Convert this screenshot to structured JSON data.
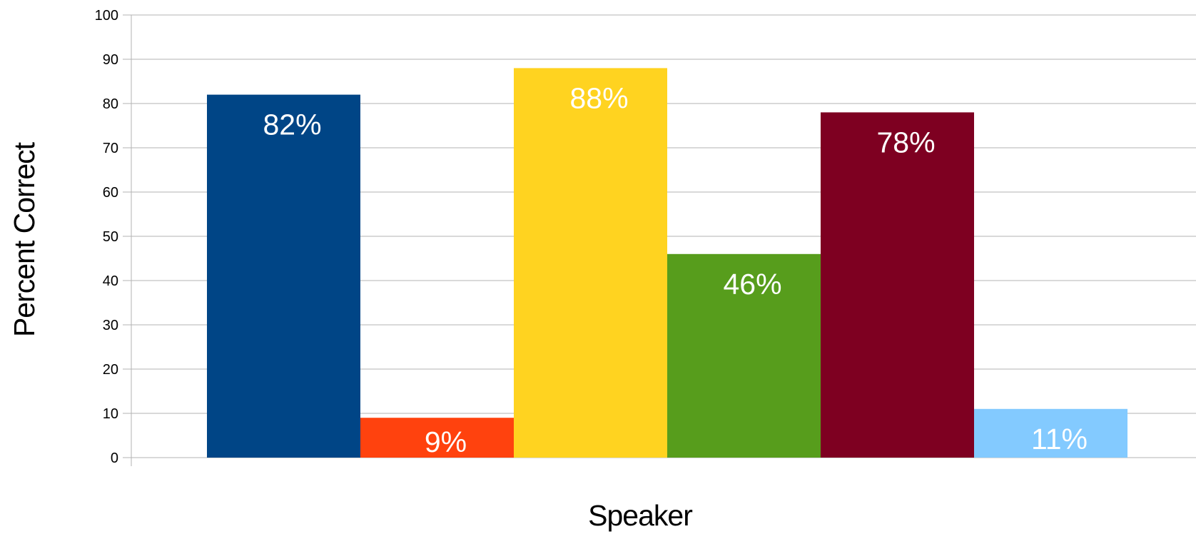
{
  "chart_data": {
    "type": "bar",
    "title": "",
    "xlabel": "Speaker",
    "ylabel": "Percent Correct",
    "ylim": [
      0,
      100
    ],
    "yticks": [
      "0",
      "10",
      "20",
      "30",
      "40",
      "50",
      "60",
      "70",
      "80",
      "90",
      "100"
    ],
    "grid": true,
    "legend": "none",
    "categories": [
      "",
      "",
      "",
      "",
      "",
      ""
    ],
    "values": [
      82,
      9,
      88,
      46,
      78,
      11
    ],
    "labels": [
      "82%",
      "9%",
      "88%",
      "46%",
      "78%",
      "11%"
    ],
    "colors": [
      "#004586",
      "#ff420e",
      "#ffd320",
      "#579d1c",
      "#7e0021",
      "#83caff"
    ]
  }
}
